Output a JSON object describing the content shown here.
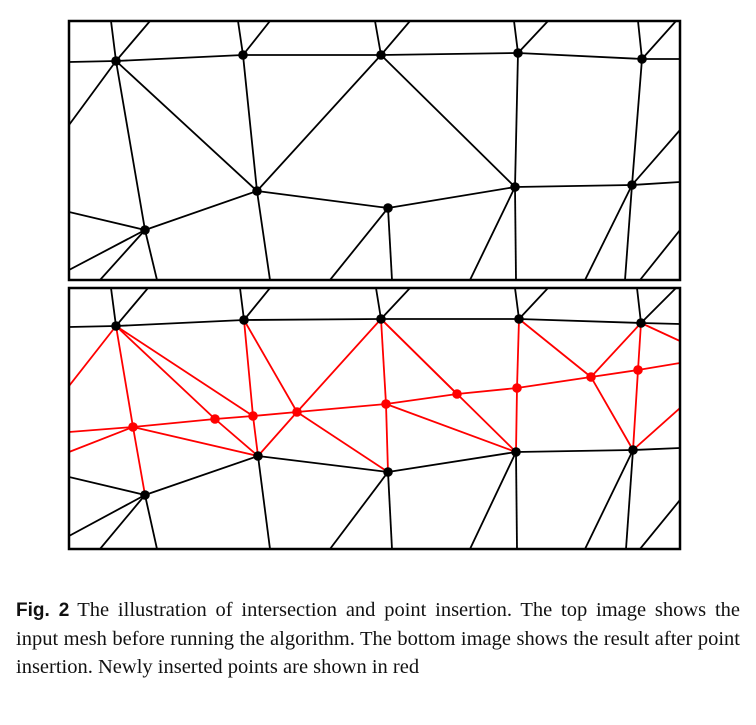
{
  "caption": {
    "label": "Fig. 2",
    "text": "The illustration of intersection and point insertion. The top image shows the input mesh before running the algorithm. The bottom image shows the result after point insertion. Newly inserted points are shown in red"
  },
  "colors": {
    "mesh_edge": "#000000",
    "inserted": "#ff0000",
    "frame": "#000000"
  },
  "panels": [
    {
      "id": "top",
      "description": "input mesh before running the algorithm"
    },
    {
      "id": "bottom",
      "description": "result after point insertion"
    }
  ]
}
